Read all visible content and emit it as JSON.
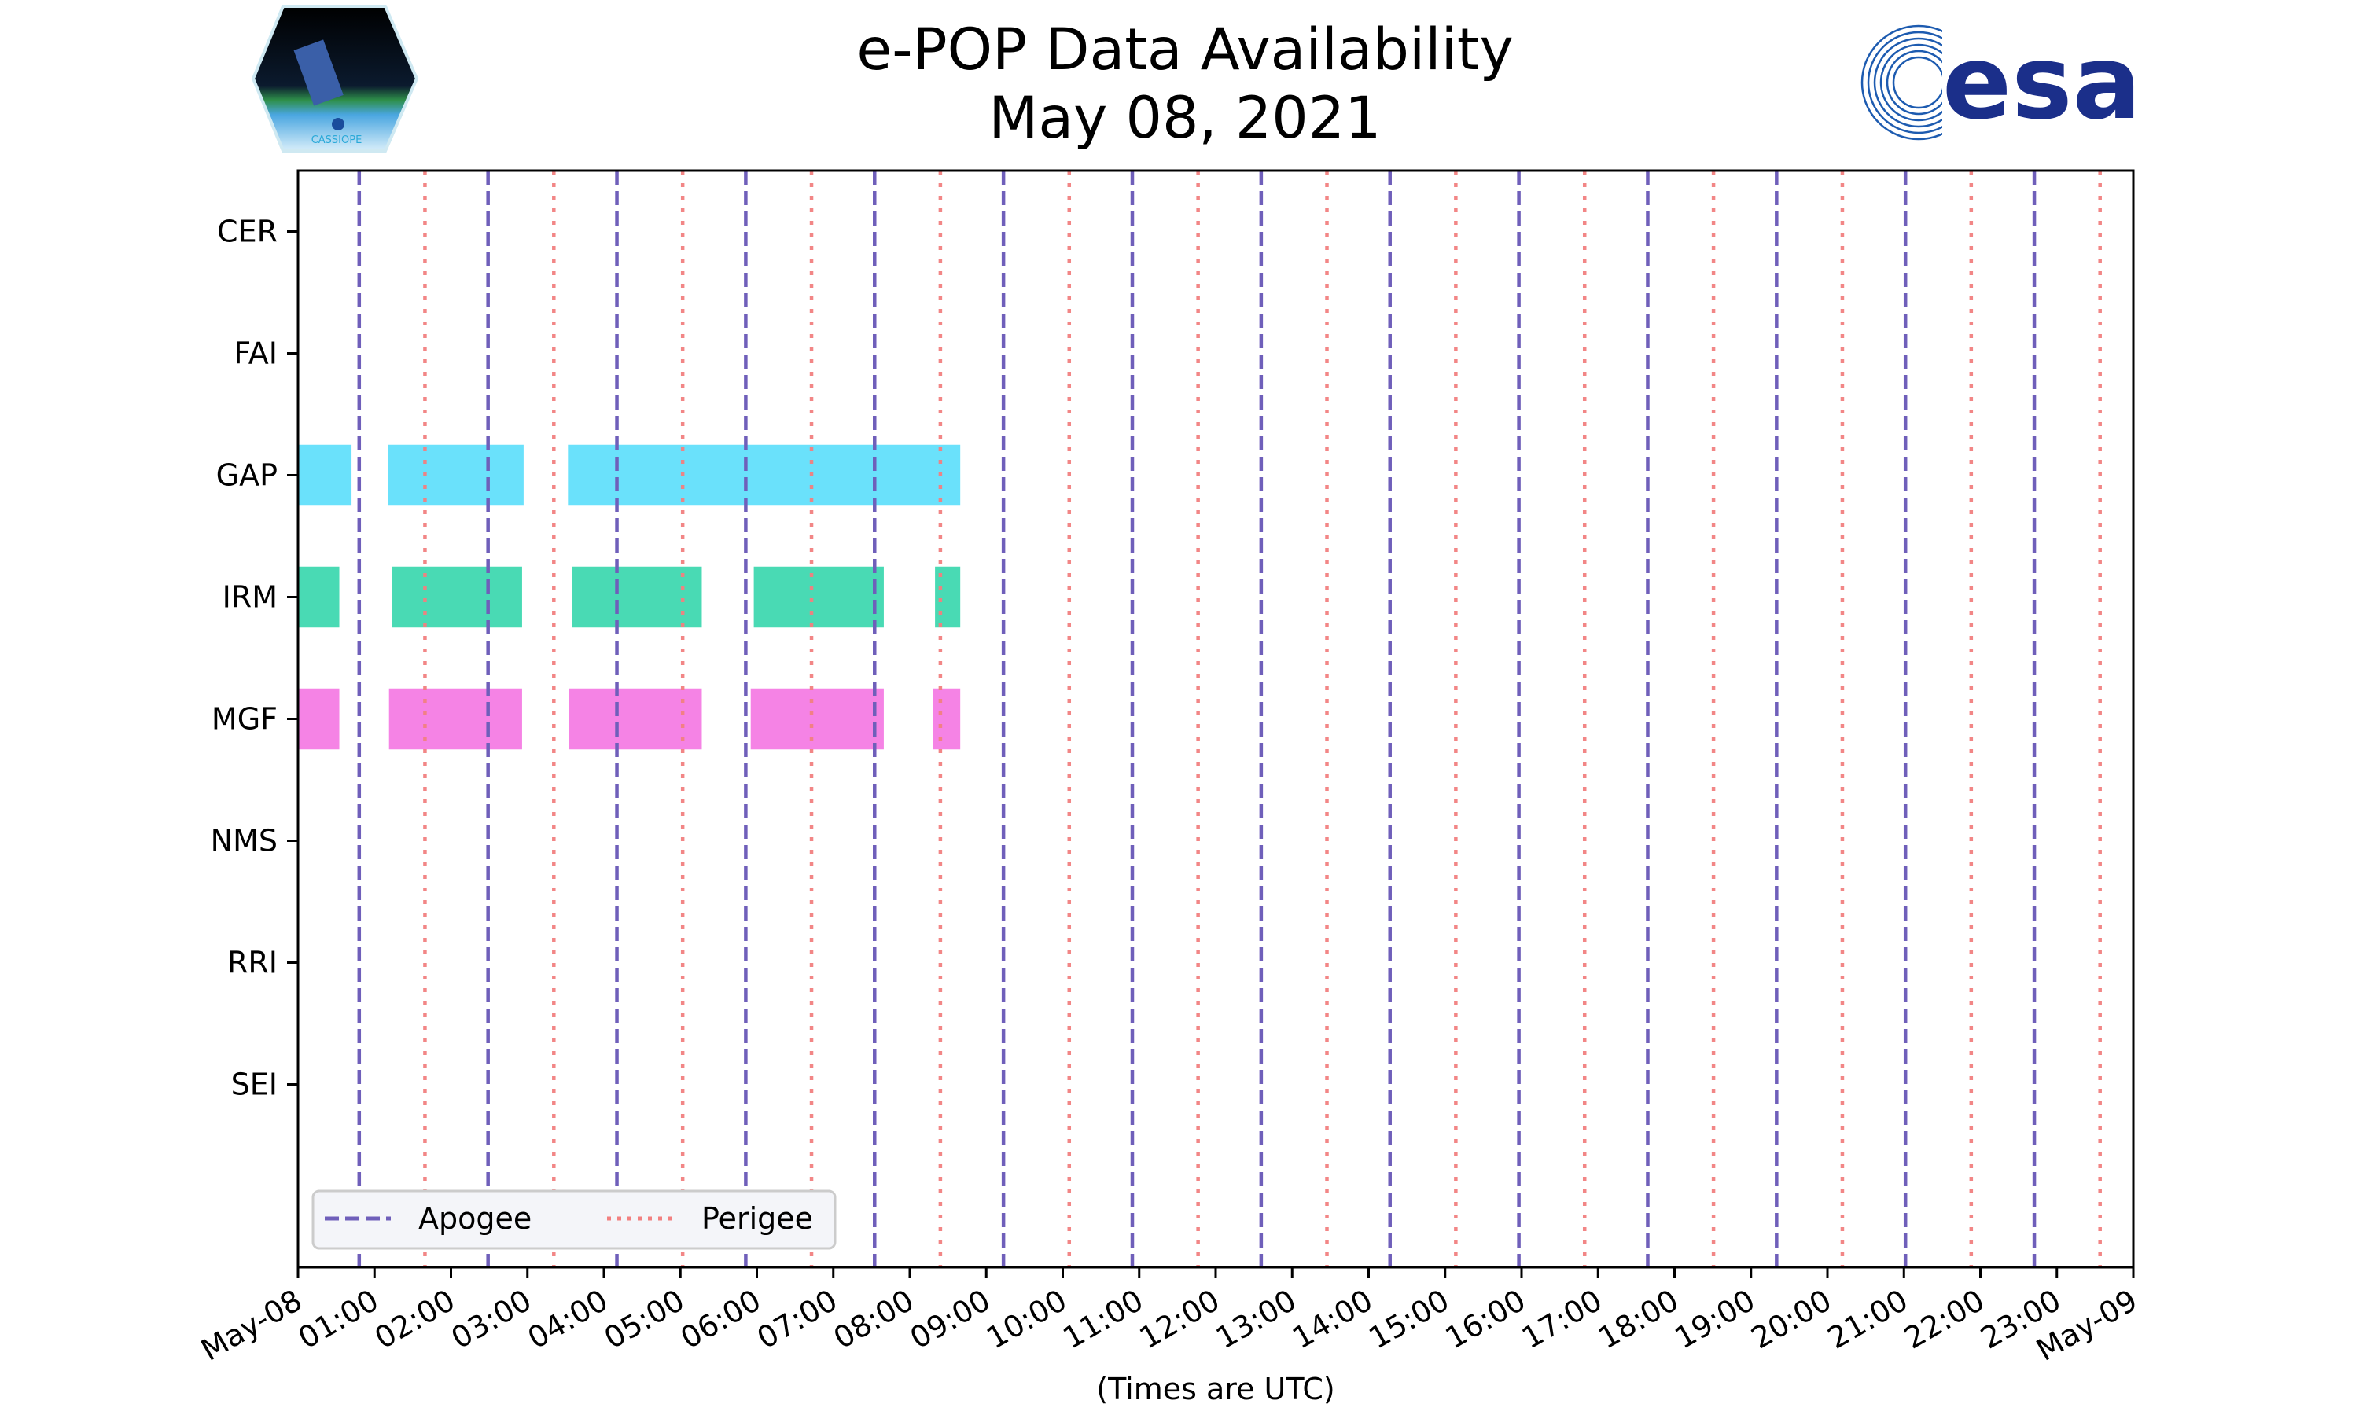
{
  "chart_data": {
    "type": "bar",
    "subtype": "broken-barh timeline",
    "title": "e-POP Data Availability",
    "subtitle": "May 08, 2021",
    "xlabel": "(Times are UTC)",
    "ylabel": "",
    "xlim_hours": [
      0,
      24
    ],
    "x_tick_labels": [
      "May-08",
      "01:00",
      "02:00",
      "03:00",
      "04:00",
      "05:00",
      "06:00",
      "07:00",
      "08:00",
      "09:00",
      "10:00",
      "11:00",
      "12:00",
      "13:00",
      "14:00",
      "15:00",
      "16:00",
      "17:00",
      "18:00",
      "19:00",
      "20:00",
      "21:00",
      "22:00",
      "23:00",
      "May-09"
    ],
    "categories": [
      "CER",
      "FAI",
      "GAP",
      "IRM",
      "MGF",
      "NMS",
      "RRI",
      "SEI"
    ],
    "ylim": [
      -0.5,
      8.5
    ],
    "grid": false,
    "series": [
      {
        "name": "GAP",
        "color": "#62dffb",
        "intervals_hours": [
          [
            0,
            0.7
          ],
          [
            1.18,
            2.95
          ],
          [
            3.53,
            8.66
          ]
        ]
      },
      {
        "name": "IRM",
        "color": "#3fd8b0",
        "intervals_hours": [
          [
            0,
            0.54
          ],
          [
            1.23,
            2.93
          ],
          [
            3.58,
            5.28
          ],
          [
            5.96,
            7.66
          ],
          [
            8.33,
            8.66
          ]
        ]
      },
      {
        "name": "MGF",
        "color": "#f47ce4",
        "intervals_hours": [
          [
            0,
            0.54
          ],
          [
            1.19,
            2.93
          ],
          [
            3.54,
            5.28
          ],
          [
            5.92,
            7.66
          ],
          [
            8.3,
            8.66
          ]
        ]
      }
    ],
    "apogee_hours": [
      0.8,
      2.485,
      4.17,
      5.855,
      7.54,
      9.225,
      10.91,
      12.595,
      14.28,
      15.965,
      17.65,
      19.335,
      21.02,
      22.705
    ],
    "perigee_hours": [
      1.66,
      3.345,
      5.03,
      6.715,
      8.4,
      10.085,
      11.77,
      13.455,
      15.14,
      16.825,
      18.51,
      20.195,
      21.88,
      23.565
    ],
    "legend": {
      "placement": "lower-left",
      "entries": [
        {
          "label": "Apogee",
          "color": "#6f5fba",
          "style": "dashed"
        },
        {
          "label": "Perigee",
          "color": "#f28080",
          "style": "dotted"
        }
      ]
    }
  },
  "logos": {
    "left": "CASSIOPE",
    "right": "esa"
  }
}
